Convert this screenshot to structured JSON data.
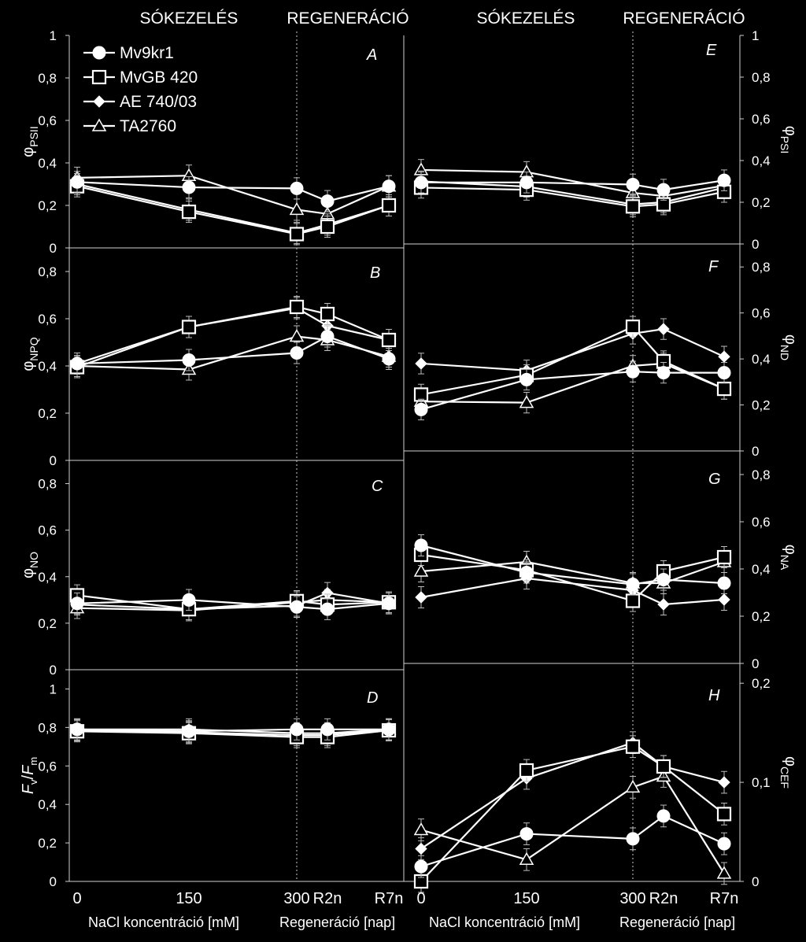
{
  "header": {
    "left_treatment": "SÓKEZELÉS",
    "left_regeneration": "REGENERÁCIÓ",
    "right_treatment": "SÓKEZELÉS",
    "right_regeneration": "REGENERÁCIÓ"
  },
  "footer": {
    "left_x_tick_labels": [
      "0",
      "150",
      "300",
      "R2n",
      "R7n"
    ],
    "right_x_tick_labels": [
      "0",
      "150",
      "300",
      "R2n",
      "R7n"
    ],
    "left_axis_title_conc": "NaCl koncentráció [mM]",
    "left_axis_title_regen": "Regeneráció [nap]",
    "right_axis_title_conc": "NaCl koncentráció [mM]",
    "right_axis_title_regen": "Regeneráció [nap]"
  },
  "legend": {
    "items": [
      {
        "name": "Mv9kr1",
        "marker": "circle"
      },
      {
        "name": "MvGB 420",
        "marker": "square"
      },
      {
        "name": "AE 740/03",
        "marker": "diamond"
      },
      {
        "name": "TA2760",
        "marker": "triangle"
      }
    ]
  },
  "colors": {
    "background": "#000000",
    "foreground": "#ffffff",
    "divider": "#d0d0d0"
  },
  "chart_data": [
    {
      "type": "line",
      "panel": "A",
      "ylabel_main": "φ",
      "ylabel_sub": "PSII",
      "categories": [
        "0",
        "150",
        "300",
        "R2n",
        "R7n"
      ],
      "ylim": [
        0,
        1
      ],
      "yticks": [
        "0",
        "0,2",
        "0,4",
        "0,6",
        "0,8",
        "1"
      ],
      "series": [
        {
          "name": "Mv9kr1",
          "values": [
            0.31,
            0.285,
            0.28,
            0.22,
            0.29
          ]
        },
        {
          "name": "MvGB 420",
          "values": [
            0.29,
            0.17,
            0.065,
            0.1,
            0.2
          ]
        },
        {
          "name": "AE 740/03",
          "values": [
            0.3,
            0.18,
            0.07,
            0.11,
            0.2
          ]
        },
        {
          "name": "TA2760",
          "values": [
            0.33,
            0.34,
            0.18,
            0.16,
            0.29
          ]
        }
      ]
    },
    {
      "type": "line",
      "panel": "B",
      "ylabel_main": "φ",
      "ylabel_sub": "NPQ",
      "categories": [
        "0",
        "150",
        "300",
        "R2n",
        "R7n"
      ],
      "ylim": [
        0,
        0.9
      ],
      "yticks": [
        "0",
        "0,2",
        "0,4",
        "0,6",
        "0,8"
      ],
      "series": [
        {
          "name": "Mv9kr1",
          "values": [
            0.41,
            0.425,
            0.455,
            0.525,
            0.43
          ]
        },
        {
          "name": "MvGB 420",
          "values": [
            0.395,
            0.565,
            0.65,
            0.62,
            0.51
          ]
        },
        {
          "name": "AE 740/03",
          "values": [
            0.41,
            0.565,
            0.645,
            0.57,
            0.51
          ]
        },
        {
          "name": "TA2760",
          "values": [
            0.4,
            0.385,
            0.525,
            0.51,
            0.44
          ]
        }
      ]
    },
    {
      "type": "line",
      "panel": "C",
      "ylabel_main": "φ",
      "ylabel_sub": "NO",
      "categories": [
        "0",
        "150",
        "300",
        "R2n",
        "R7n"
      ],
      "ylim": [
        0,
        0.9
      ],
      "yticks": [
        "0",
        "0,2",
        "0,4",
        "0,6",
        "0,8"
      ],
      "series": [
        {
          "name": "Mv9kr1",
          "values": [
            0.285,
            0.3,
            0.27,
            0.26,
            0.285
          ]
        },
        {
          "name": "MvGB 420",
          "values": [
            0.32,
            0.26,
            0.295,
            0.28,
            0.29
          ]
        },
        {
          "name": "AE 740/03",
          "values": [
            0.28,
            0.26,
            0.275,
            0.33,
            0.285
          ]
        },
        {
          "name": "TA2760",
          "values": [
            0.265,
            0.255,
            0.29,
            0.3,
            0.29
          ]
        }
      ]
    },
    {
      "type": "line",
      "panel": "D",
      "ylabel_main": "Fv/Fm",
      "categories": [
        "0",
        "150",
        "300",
        "R2n",
        "R7n"
      ],
      "ylim": [
        0,
        1.1
      ],
      "yticks": [
        "0",
        "0,2",
        "0,4",
        "0,6",
        "0,8",
        "1"
      ],
      "series": [
        {
          "name": "Mv9kr1",
          "values": [
            0.79,
            0.78,
            0.79,
            0.79,
            0.79
          ]
        },
        {
          "name": "MvGB 420",
          "values": [
            0.78,
            0.77,
            0.75,
            0.75,
            0.785
          ]
        },
        {
          "name": "AE 740/03",
          "values": [
            0.79,
            0.79,
            0.77,
            0.77,
            0.79
          ]
        },
        {
          "name": "TA2760",
          "values": [
            0.785,
            0.775,
            0.76,
            0.76,
            0.79
          ]
        }
      ]
    },
    {
      "type": "line",
      "panel": "E",
      "ylabel_main": "φ",
      "ylabel_sub": "PSI",
      "categories": [
        "0",
        "150",
        "300",
        "R2n",
        "R7n"
      ],
      "ylim": [
        0,
        1
      ],
      "yticks": [
        "0",
        "0,2",
        "0,4",
        "0,6",
        "0,8",
        "1"
      ],
      "series": [
        {
          "name": "Mv9kr1",
          "values": [
            0.295,
            0.295,
            0.285,
            0.26,
            0.305
          ]
        },
        {
          "name": "MvGB 420",
          "values": [
            0.27,
            0.26,
            0.18,
            0.19,
            0.25
          ]
        },
        {
          "name": "AE 740/03",
          "values": [
            0.3,
            0.275,
            0.19,
            0.2,
            0.27
          ]
        },
        {
          "name": "TA2760",
          "values": [
            0.355,
            0.345,
            0.245,
            0.23,
            0.28
          ]
        }
      ]
    },
    {
      "type": "line",
      "panel": "F",
      "ylabel_main": "φ",
      "ylabel_sub": "ND",
      "categories": [
        "0",
        "150",
        "300",
        "R2n",
        "R7n"
      ],
      "ylim": [
        0,
        0.9
      ],
      "yticks": [
        "0",
        "0,2",
        "0,4",
        "0,6",
        "0,8"
      ],
      "series": [
        {
          "name": "Mv9kr1",
          "values": [
            0.18,
            0.31,
            0.345,
            0.34,
            0.34
          ]
        },
        {
          "name": "MvGB 420",
          "values": [
            0.245,
            0.33,
            0.54,
            0.39,
            0.27
          ]
        },
        {
          "name": "AE 740/03",
          "values": [
            0.38,
            0.35,
            0.51,
            0.53,
            0.41
          ]
        },
        {
          "name": "TA2760",
          "values": [
            0.215,
            0.21,
            0.37,
            0.38,
            0.27
          ]
        }
      ]
    },
    {
      "type": "line",
      "panel": "G",
      "ylabel_main": "φ",
      "ylabel_sub": "NA",
      "categories": [
        "0",
        "150",
        "300",
        "R2n",
        "R7n"
      ],
      "ylim": [
        0,
        0.9
      ],
      "yticks": [
        "0",
        "0,2",
        "0,4",
        "0,6",
        "0,8"
      ],
      "series": [
        {
          "name": "Mv9kr1",
          "values": [
            0.5,
            0.385,
            0.335,
            0.355,
            0.34
          ]
        },
        {
          "name": "MvGB 420",
          "values": [
            0.46,
            0.395,
            0.265,
            0.39,
            0.45
          ]
        },
        {
          "name": "AE 740/03",
          "values": [
            0.28,
            0.36,
            0.31,
            0.25,
            0.27
          ]
        },
        {
          "name": "TA2760",
          "values": [
            0.39,
            0.43,
            0.34,
            0.34,
            0.43
          ]
        }
      ]
    },
    {
      "type": "line",
      "panel": "H",
      "ylabel_main": "φ",
      "ylabel_sub": "CEF",
      "categories": [
        "0",
        "150",
        "300",
        "R2n",
        "R7n"
      ],
      "ylim": [
        0,
        0.22
      ],
      "yticks": [
        "0",
        "0,1",
        "0,2"
      ],
      "series": [
        {
          "name": "Mv9kr1",
          "values": [
            0.015,
            0.048,
            0.043,
            0.066,
            0.038
          ]
        },
        {
          "name": "MvGB 420",
          "values": [
            0.0,
            0.112,
            0.136,
            0.116,
            0.068
          ]
        },
        {
          "name": "AE 740/03",
          "values": [
            0.033,
            0.104,
            0.14,
            0.116,
            0.1
          ]
        },
        {
          "name": "TA2760",
          "values": [
            0.052,
            0.022,
            0.095,
            0.106,
            0.008
          ]
        }
      ]
    }
  ]
}
